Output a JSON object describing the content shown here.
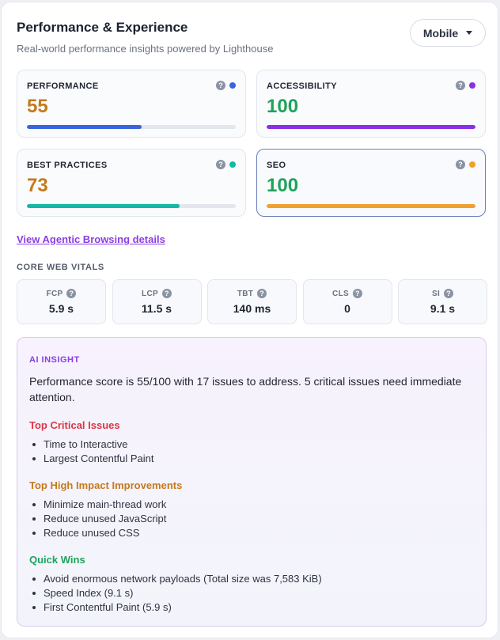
{
  "header": {
    "title": "Performance & Experience",
    "subtitle": "Real-world performance insights powered by Lighthouse",
    "device": "Mobile"
  },
  "scores": [
    {
      "label": "PERFORMANCE",
      "value": "55",
      "value_color": "#c47a1c",
      "dot_color": "#3a63e0",
      "progress": 0.55
    },
    {
      "label": "ACCESSIBILITY",
      "value": "100",
      "value_color": "#1ea35b",
      "dot_color": "#8b2fe8",
      "progress": 1.0
    },
    {
      "label": "BEST PRACTICES",
      "value": "73",
      "value_color": "#c47a1c",
      "dot_color": "#14b8a6",
      "progress": 0.73
    },
    {
      "label": "SEO",
      "value": "100",
      "value_color": "#1ea35b",
      "dot_color": "#f0a030",
      "progress": 1.0,
      "selected": true
    }
  ],
  "link": "View Agentic Browsing details",
  "vitals_title": "CORE WEB VITALS",
  "vitals": [
    {
      "label": "FCP",
      "value": "5.9 s"
    },
    {
      "label": "LCP",
      "value": "11.5 s"
    },
    {
      "label": "TBT",
      "value": "140 ms"
    },
    {
      "label": "CLS",
      "value": "0"
    },
    {
      "label": "SI",
      "value": "9.1 s"
    }
  ],
  "insight": {
    "tag": "AI INSIGHT",
    "summary": "Performance score is 55/100 with 17 issues to address. 5 critical issues need immediate attention.",
    "groups": [
      {
        "title": "Top Critical Issues",
        "color": "#dc3545",
        "items": [
          "Time to Interactive",
          "Largest Contentful Paint"
        ]
      },
      {
        "title": "Top High Impact Improvements",
        "color": "#c47a1c",
        "items": [
          "Minimize main-thread work",
          "Reduce unused JavaScript",
          "Reduce unused CSS"
        ]
      },
      {
        "title": "Quick Wins",
        "color": "#1ea35b",
        "items": [
          "Avoid enormous network payloads (Total size was 7,583 KiB)",
          "Speed Index (9.1 s)",
          "First Contentful Paint (5.9 s)"
        ]
      }
    ]
  },
  "icons": {
    "help": "question-icon",
    "dropdown": "chevron-down-icon"
  }
}
